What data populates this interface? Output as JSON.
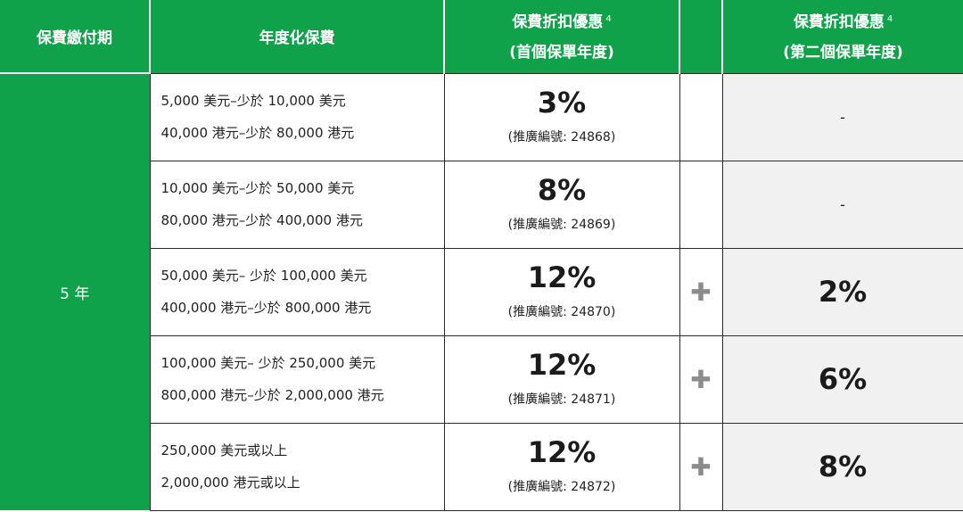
{
  "header": {
    "term": "保費繳付期",
    "premium": "年度化保費",
    "first_year_title": "保費折扣優惠",
    "first_year_note": "4",
    "first_year_sub": "(首個保單年度)",
    "second_year_title": "保費折扣優惠",
    "second_year_note": "4",
    "second_year_sub": "(第二個保單年度)"
  },
  "term_value": "5 年",
  "rows": [
    {
      "usd": "5,000 美元–少於 10,000 美元",
      "hkd": "40,000 港元–少於 80,000 港元",
      "pct": "3%",
      "code": "(推廣編號: 24868)",
      "plus": "",
      "second": "-"
    },
    {
      "usd": "10,000 美元–少於 50,000 美元",
      "hkd": "80,000 港元–少於 400,000 港元",
      "pct": "8%",
      "code": "(推廣編號: 24869)",
      "plus": "",
      "second": "-"
    },
    {
      "usd": "50,000 美元– 少於 100,000 美元",
      "hkd": "400,000 港元–少於 800,000 港元",
      "pct": "12%",
      "code": "(推廣編號: 24870)",
      "plus": "✚",
      "second": "2%"
    },
    {
      "usd": "100,000 美元– 少於 250,000 美元",
      "hkd": "800,000 港元–少於 2,000,000 港元",
      "pct": "12%",
      "code": "(推廣編號: 24871)",
      "plus": "✚",
      "second": "6%"
    },
    {
      "usd": "250,000 美元或以上",
      "hkd": "2,000,000 港元或以上",
      "pct": "12%",
      "code": "(推廣編號: 24872)",
      "plus": "✚",
      "second": "8%"
    }
  ],
  "colors": {
    "header_green": "#0fa24a",
    "second_year_bg": "#f1f1f1",
    "plus_grey": "#8c8c8c"
  }
}
